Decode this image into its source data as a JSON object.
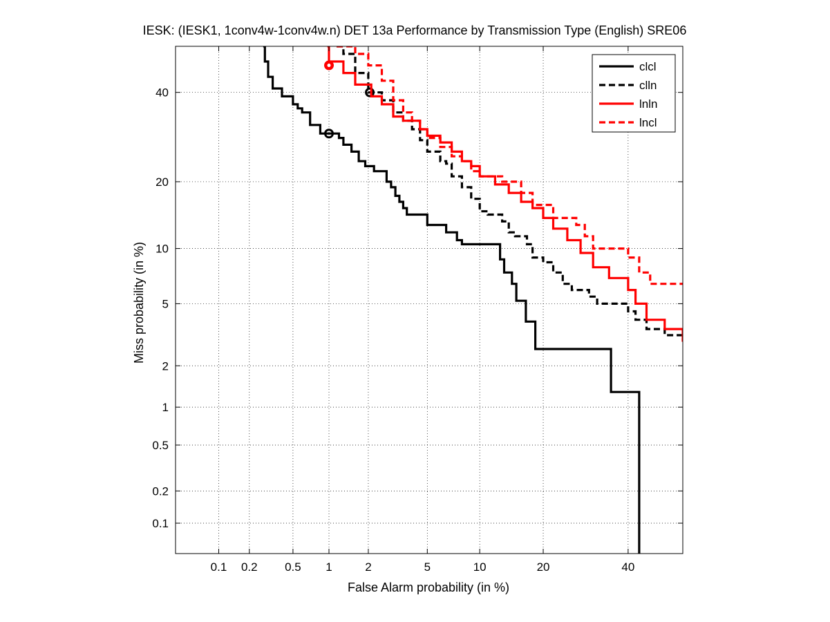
{
  "chart_data": {
    "type": "line",
    "title": "IESK: (IESK1, 1conv4w-1conv4w.n) DET 13a Performance by Transmission Type (English) SRE06",
    "xlabel": "False Alarm probability (in %)",
    "ylabel": "Miss probability (in %)",
    "scale": "normal-deviate (probit) on both axes",
    "xlim": [
      0.035,
      55
    ],
    "ylim": [
      0.05,
      52
    ],
    "x_ticks": [
      0.1,
      0.2,
      0.5,
      1,
      2,
      5,
      10,
      20,
      40
    ],
    "x_tick_labels": [
      "0.1",
      "0.2",
      "0.5",
      "1",
      "2",
      "5",
      "10",
      "20",
      "40"
    ],
    "y_ticks": [
      0.1,
      0.2,
      0.5,
      1,
      2,
      5,
      10,
      20,
      40
    ],
    "y_tick_labels": [
      "0.1",
      "0.2",
      "0.5",
      "1",
      "2",
      "5",
      "10",
      "20",
      "40"
    ],
    "grid": true,
    "legend_position": "top-right",
    "series": [
      {
        "name": "clcl",
        "color": "#000000",
        "style": "solid",
        "points": [
          [
            0.27,
            52
          ],
          [
            0.28,
            48
          ],
          [
            0.3,
            44
          ],
          [
            0.33,
            41
          ],
          [
            0.38,
            41
          ],
          [
            0.4,
            39
          ],
          [
            0.45,
            39
          ],
          [
            0.5,
            37
          ],
          [
            0.55,
            36
          ],
          [
            0.6,
            35
          ],
          [
            0.7,
            34
          ],
          [
            0.7,
            32
          ],
          [
            0.85,
            32
          ],
          [
            0.85,
            30
          ],
          [
            1.1,
            30
          ],
          [
            1.2,
            29
          ],
          [
            1.3,
            27.5
          ],
          [
            1.5,
            26
          ],
          [
            1.7,
            24
          ],
          [
            1.9,
            23
          ],
          [
            2.1,
            23
          ],
          [
            2.2,
            22
          ],
          [
            2.6,
            22
          ],
          [
            2.7,
            20
          ],
          [
            2.9,
            19
          ],
          [
            3.1,
            17.5
          ],
          [
            3.3,
            16.5
          ],
          [
            3.5,
            15.5
          ],
          [
            3.7,
            14.5
          ],
          [
            4.5,
            14.5
          ],
          [
            5,
            13
          ],
          [
            6,
            13
          ],
          [
            6.5,
            12
          ],
          [
            7.5,
            11
          ],
          [
            8,
            10.5
          ],
          [
            9,
            10.5
          ],
          [
            12.5,
            10.5
          ],
          [
            12.7,
            8.8
          ],
          [
            13.3,
            7.5
          ],
          [
            14.5,
            6.5
          ],
          [
            15.2,
            5.2
          ],
          [
            16.5,
            5.2
          ],
          [
            16.8,
            3.9
          ],
          [
            18,
            3.9
          ],
          [
            18.5,
            2.6
          ],
          [
            35,
            2.6
          ],
          [
            35.5,
            1.3
          ],
          [
            43,
            1.3
          ],
          [
            43,
            0.05
          ]
        ],
        "marker": [
          1.0,
          30
        ]
      },
      {
        "name": "clln",
        "color": "#000000",
        "style": "dashed",
        "points": [
          [
            1.15,
            52
          ],
          [
            1.3,
            50
          ],
          [
            1.6,
            45
          ],
          [
            2,
            40
          ],
          [
            2.5,
            38
          ],
          [
            3,
            35
          ],
          [
            3.5,
            33
          ],
          [
            4,
            31
          ],
          [
            4.5,
            28.5
          ],
          [
            5,
            26
          ],
          [
            6,
            24
          ],
          [
            6.5,
            23.5
          ],
          [
            7,
            21
          ],
          [
            8,
            19
          ],
          [
            9,
            17
          ],
          [
            10,
            15
          ],
          [
            11,
            14.5
          ],
          [
            12.5,
            14.5
          ],
          [
            13,
            13.5
          ],
          [
            14,
            12
          ],
          [
            15,
            11.5
          ],
          [
            17,
            10.5
          ],
          [
            18,
            9
          ],
          [
            20,
            8.5
          ],
          [
            22,
            7.5
          ],
          [
            24,
            6.5
          ],
          [
            26,
            6
          ],
          [
            30,
            5.5
          ],
          [
            32,
            5
          ],
          [
            38,
            5
          ],
          [
            40,
            4.5
          ],
          [
            42,
            4
          ],
          [
            45,
            3.5
          ],
          [
            50,
            3.2
          ],
          [
            55,
            3
          ]
        ],
        "marker": [
          2.05,
          40
        ]
      },
      {
        "name": "lnln",
        "color": "#ff0000",
        "style": "solid",
        "points": [
          [
            0.97,
            52
          ],
          [
            1,
            48
          ],
          [
            1.3,
            45
          ],
          [
            1.6,
            42
          ],
          [
            2.1,
            39
          ],
          [
            2.5,
            37
          ],
          [
            3,
            34
          ],
          [
            3.5,
            33
          ],
          [
            4.5,
            31
          ],
          [
            5,
            29.5
          ],
          [
            6,
            28
          ],
          [
            7,
            26
          ],
          [
            8,
            24
          ],
          [
            9,
            23
          ],
          [
            10,
            21
          ],
          [
            12,
            19.5
          ],
          [
            14,
            18
          ],
          [
            16,
            16.5
          ],
          [
            18,
            15.5
          ],
          [
            20,
            14
          ],
          [
            22,
            12.5
          ],
          [
            25,
            11
          ],
          [
            28,
            9.5
          ],
          [
            31,
            8
          ],
          [
            35,
            7
          ],
          [
            40,
            6
          ],
          [
            42,
            5
          ],
          [
            45,
            4
          ],
          [
            50,
            3.5
          ],
          [
            55,
            2.9
          ]
        ],
        "marker": [
          1.0,
          47
        ]
      },
      {
        "name": "lncl",
        "color": "#ff0000",
        "style": "dashed",
        "points": [
          [
            1.15,
            52
          ],
          [
            1.5,
            52
          ],
          [
            1.6,
            50
          ],
          [
            2,
            47
          ],
          [
            2.5,
            43
          ],
          [
            3,
            38
          ],
          [
            3.5,
            35
          ],
          [
            4,
            33
          ],
          [
            4.5,
            31
          ],
          [
            5,
            29
          ],
          [
            6,
            27
          ],
          [
            7,
            25
          ],
          [
            8,
            24
          ],
          [
            9,
            22
          ],
          [
            10,
            21
          ],
          [
            12,
            21
          ],
          [
            13,
            20
          ],
          [
            16,
            18
          ],
          [
            18,
            16
          ],
          [
            22,
            14
          ],
          [
            27,
            13
          ],
          [
            29,
            11.5
          ],
          [
            31,
            10
          ],
          [
            37,
            10
          ],
          [
            40,
            9
          ],
          [
            43,
            7.5
          ],
          [
            46,
            6.5
          ],
          [
            55,
            6.5
          ]
        ],
        "marker": null
      }
    ]
  }
}
